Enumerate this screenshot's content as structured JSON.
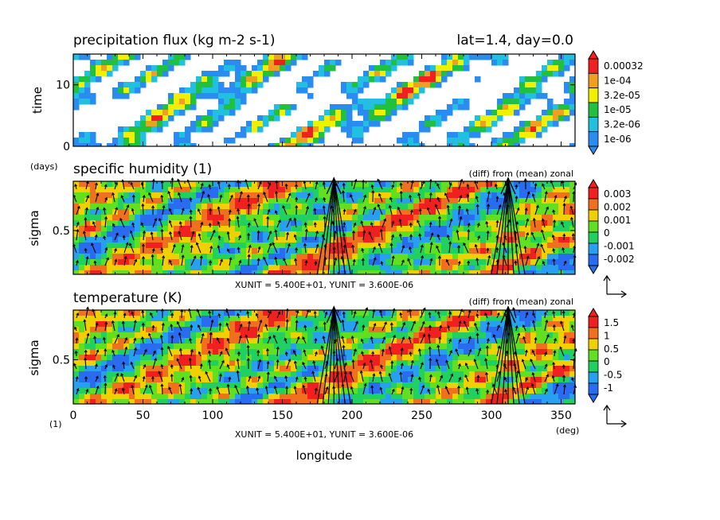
{
  "chart_data": [
    {
      "type": "heatmap",
      "title": "precipitation flux (kg m-2 s-1)",
      "info": "lat=1.4, day=0.0",
      "ylabel": "time",
      "yunit": "(days)",
      "ylim": [
        0,
        15
      ],
      "yticks": [
        "0",
        "10"
      ],
      "ytick_values": [
        0,
        10
      ],
      "xlim": [
        0,
        360
      ],
      "legend": "right",
      "colorbar": {
        "labels": [
          "0.00032",
          "1e-04",
          "3.2e-05",
          "1e-05",
          "3.2e-06",
          "1e-06"
        ],
        "colors": [
          "#2a8cf0",
          "#22c0e0",
          "#20c040",
          "#f0f000",
          "#f0a020",
          "#f02020"
        ]
      }
    },
    {
      "type": "heatmap",
      "title": "specific humidity (1)",
      "note": "(diff) from (mean) zonal",
      "ylabel": "sigma",
      "ylim": [
        0.1,
        0.95
      ],
      "yticks": [
        "0.5"
      ],
      "ytick_values": [
        0.5
      ],
      "xlim": [
        0,
        360
      ],
      "unit_text": "XUNIT = 5.400E+01, YUNIT = 3.600E-06",
      "colorbar": {
        "labels": [
          "0.003",
          "0.002",
          "0.001",
          "0",
          "-0.001",
          "-0.002"
        ],
        "colors": [
          "#2a6cf0",
          "#28a0f0",
          "#20d060",
          "#60e020",
          "#f0d000",
          "#f07020",
          "#f02020"
        ]
      }
    },
    {
      "type": "heatmap",
      "title": "temperature (K)",
      "note": "(diff) from (mean) zonal",
      "ylabel": "sigma",
      "yunit": "(1)",
      "ylim": [
        0.1,
        0.95
      ],
      "yticks": [
        "0.5"
      ],
      "ytick_values": [
        0.5
      ],
      "xlabel": "longitude",
      "xunit": "(deg)",
      "xlim": [
        0,
        360
      ],
      "xticks": [
        "0",
        "50",
        "100",
        "150",
        "200",
        "250",
        "300",
        "350"
      ],
      "xtick_values": [
        0,
        50,
        100,
        150,
        200,
        250,
        300,
        350
      ],
      "unit_text": "XUNIT = 5.400E+01, YUNIT = 3.600E-06",
      "colorbar": {
        "labels": [
          "1.5",
          "1",
          "0.5",
          "0",
          "-0.5",
          "-1"
        ],
        "colors": [
          "#2a6cf0",
          "#28a0f0",
          "#20d060",
          "#60e020",
          "#f0d000",
          "#f07020",
          "#f02020"
        ]
      }
    }
  ]
}
